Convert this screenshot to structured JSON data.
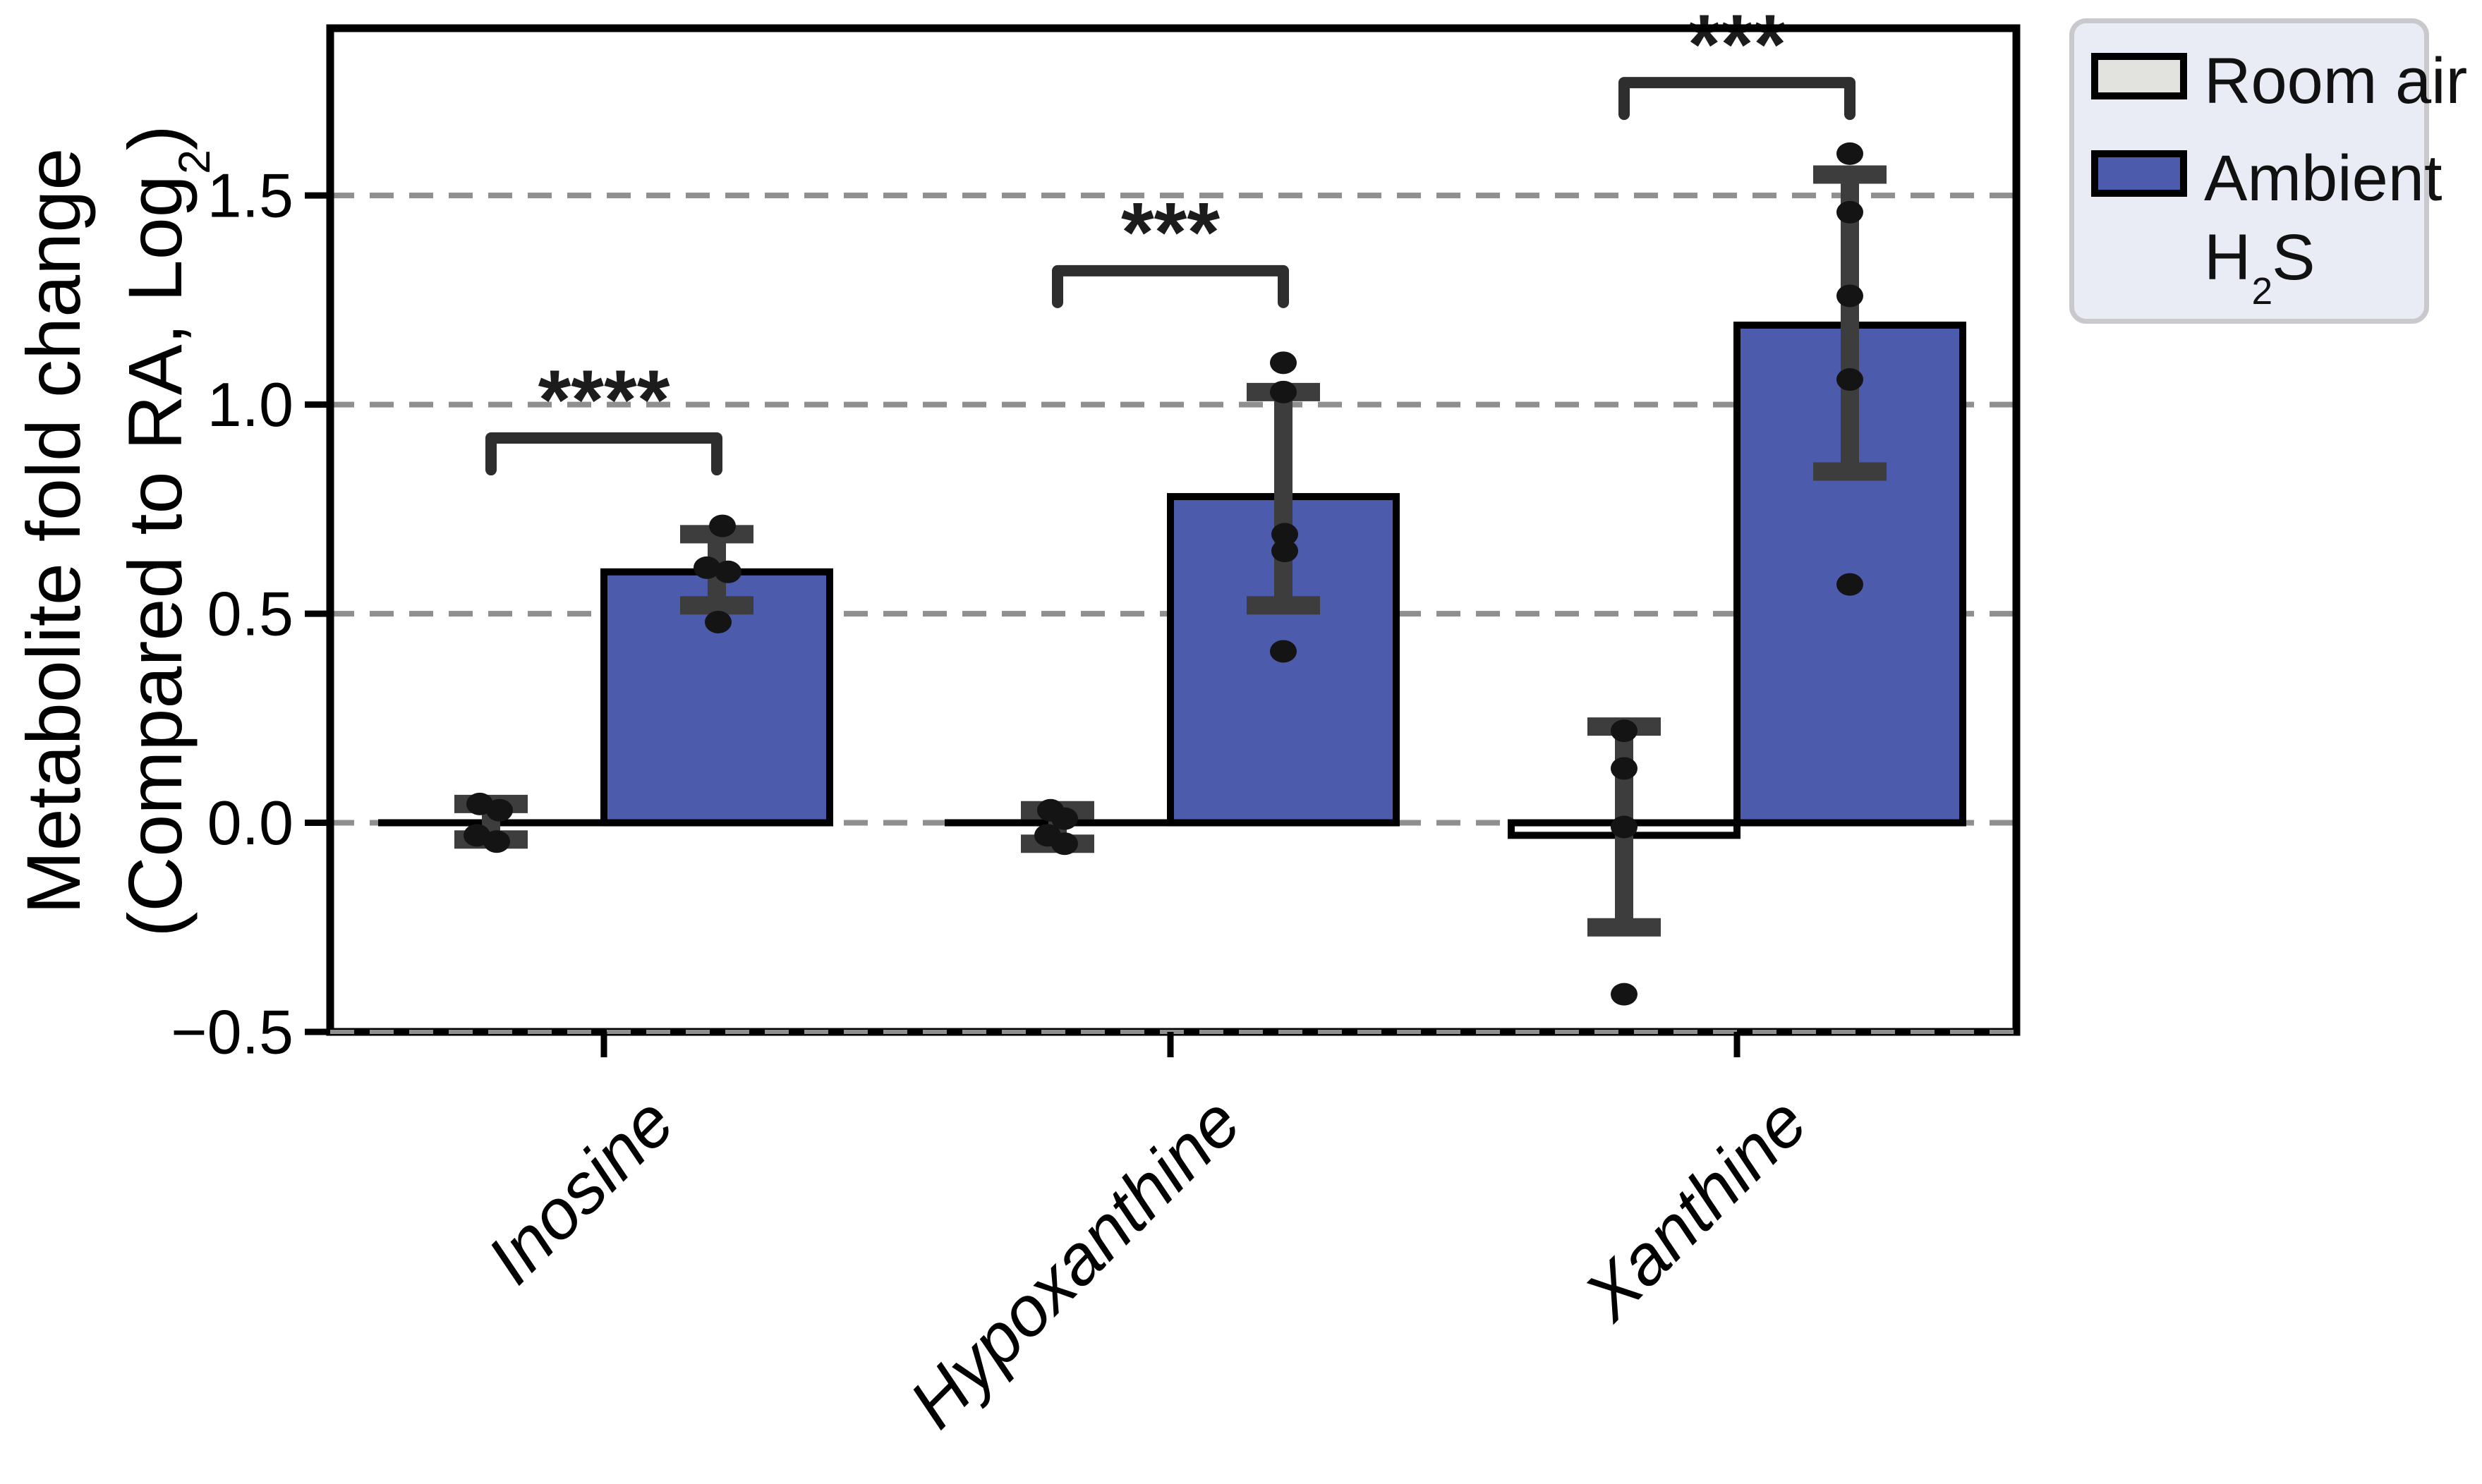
{
  "axis": {
    "ylabel_line1": "Metabolite fold change",
    "ylabel_line2_prefix": "(Compared to RA, Log",
    "ylabel_line2_sub": "2",
    "ylabel_line2_suffix": ")"
  },
  "legend": {
    "items": [
      {
        "label": "Room air",
        "swatch_color": "#e2e2df"
      },
      {
        "line1": "Ambient",
        "line2_prefix": "H",
        "line2_sub": "2",
        "line2_suffix": "S",
        "swatch_color": "#4c5bac"
      }
    ]
  },
  "chart_data": {
    "type": "bar",
    "grouped": true,
    "title": "",
    "xlabel": "",
    "ylabel": "Metabolite fold change (Compared to RA, Log2)",
    "categories": [
      "Inosine",
      "Hypoxanthine",
      "Xanthine"
    ],
    "yticks": [
      -0.5,
      0.0,
      0.5,
      1.0,
      1.5
    ],
    "ylim": [
      -0.5,
      1.9
    ],
    "grid": {
      "axis": "y",
      "style": "dashed",
      "color": "#8f8f8f"
    },
    "legend_position": "upper right outside",
    "series": [
      {
        "name": "Room air",
        "fill": "#ffffff",
        "values": [
          0.0,
          0.0,
          -0.03
        ],
        "errors": [
          {
            "low": -0.04,
            "high": 0.045
          },
          {
            "low": -0.05,
            "high": 0.03
          },
          {
            "low": -0.25,
            "high": 0.23
          }
        ],
        "points": [
          [
            0.045,
            0.03,
            -0.03,
            -0.045
          ],
          [
            0.03,
            0.01,
            -0.03,
            -0.05
          ],
          [
            0.22,
            0.13,
            -0.01,
            -0.41
          ]
        ],
        "point_jitter": [
          [
            -16,
            12,
            -20,
            8
          ],
          [
            -10,
            10,
            -14,
            10
          ],
          [
            0,
            0,
            0,
            0
          ]
        ]
      },
      {
        "name": "Ambient H2S",
        "fill": "#4c5bac",
        "values": [
          0.6,
          0.78,
          1.19
        ],
        "errors": [
          {
            "low": 0.52,
            "high": 0.69
          },
          {
            "low": 0.52,
            "high": 1.03
          },
          {
            "low": 0.84,
            "high": 1.55
          }
        ],
        "points": [
          [
            0.71,
            0.61,
            0.6,
            0.48
          ],
          [
            1.1,
            1.03,
            0.69,
            0.65,
            0.41
          ],
          [
            1.6,
            1.46,
            1.26,
            1.06,
            0.57
          ]
        ],
        "point_jitter": [
          [
            8,
            -14,
            16,
            2
          ],
          [
            0,
            0,
            2,
            2,
            0
          ],
          [
            0,
            0,
            0,
            0,
            0
          ]
        ]
      }
    ],
    "significance": [
      {
        "category": "Inosine",
        "stars": "****",
        "bracket_y": 0.92
      },
      {
        "category": "Hypoxanthine",
        "stars": "***",
        "bracket_y": 1.32
      },
      {
        "category": "Xanthine",
        "stars": "***",
        "bracket_y": 1.77
      }
    ],
    "colors": {
      "bar_edge": "#000000",
      "errorbar": "#3d3d3d",
      "point": "#141414",
      "bracket": "#2e2e2e",
      "gridline": "#8f8f8f"
    }
  }
}
